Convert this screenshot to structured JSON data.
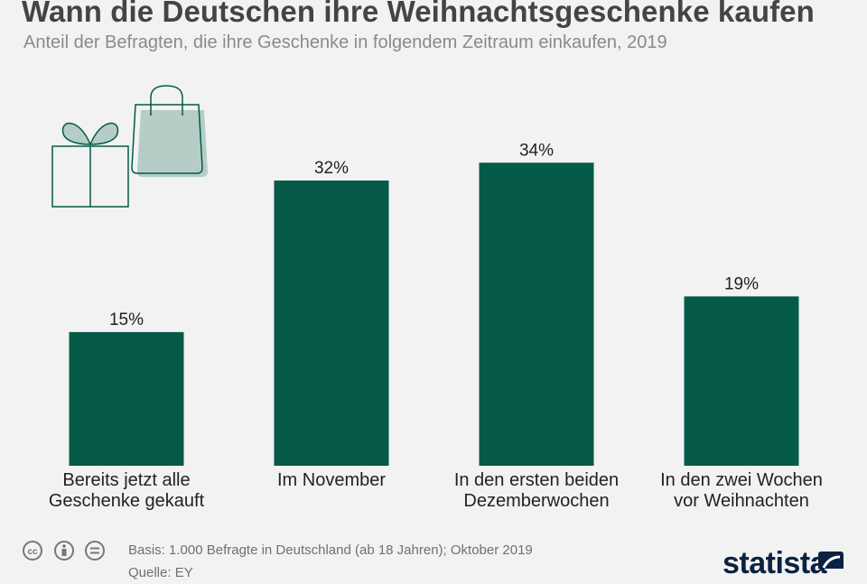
{
  "title": "Wann die Deutschen ihre Weihnachtsgeschenke kaufen",
  "subtitle": "Anteil der Befragten, die ihre Geschenke in folgendem Zeitraum einkaufen, 2019",
  "chart_data": {
    "type": "bar",
    "title": "Wann die Deutschen ihre Weihnachtsgeschenke kaufen",
    "subtitle": "Anteil der Befragten, die ihre Geschenke in folgendem Zeitraum einkaufen, 2019",
    "categories": [
      "Bereits jetzt alle\nGeschenke gekauft",
      "Im November",
      "In den ersten beiden\nDezemberwochen",
      "In den zwei Wochen\nvor Weihnachten"
    ],
    "values": [
      15,
      32,
      34,
      19
    ],
    "value_labels": [
      "15%",
      "32%",
      "34%",
      "19%"
    ],
    "unit": "%",
    "ylim": [
      0,
      40
    ],
    "grid": false,
    "bar_color": "#055a48"
  },
  "footer": {
    "basis": "Basis: 1.000 Befragte in Deutschland (ab 18 Jahren); Oktober 2019",
    "source": "Quelle: EY",
    "brand": "statista"
  },
  "colors": {
    "background": "#f2f2f2",
    "bar": "#055a48",
    "illustration_fill": "#b5cdc6",
    "illustration_stroke": "#055a48"
  },
  "icons": [
    "gift-icon",
    "shopping-bag-icon",
    "cc-icon",
    "attribution-icon",
    "no-derivatives-icon",
    "statista-logo-mark-icon"
  ]
}
